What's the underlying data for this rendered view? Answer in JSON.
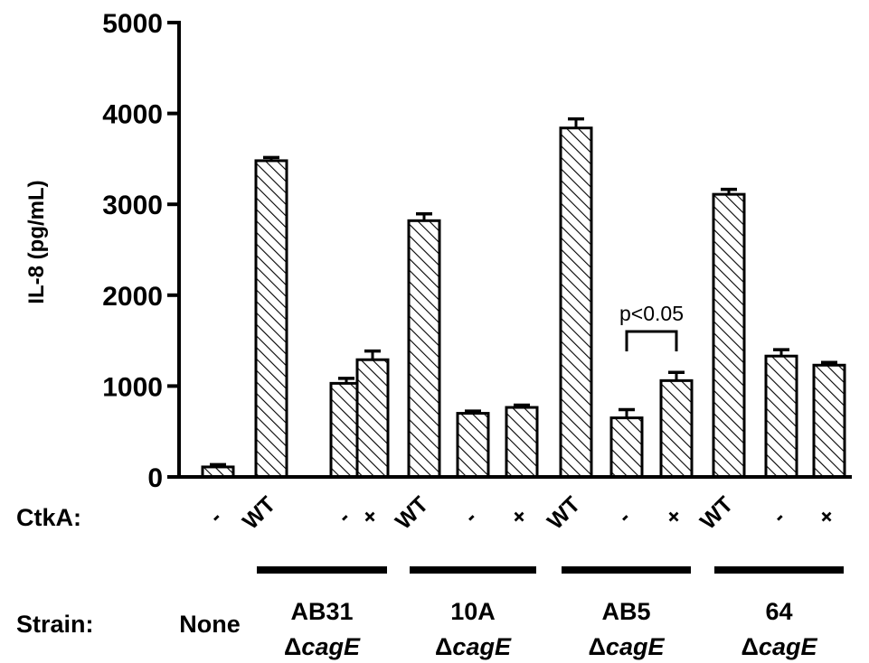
{
  "chart_data": {
    "type": "bar",
    "ylabel": "IL-8 (pg/mL)",
    "ylim": [
      0,
      5000
    ],
    "yticks": [
      0,
      1000,
      2000,
      3000,
      4000,
      5000
    ],
    "ytick_labels": [
      "0",
      "1000",
      "2000",
      "3000",
      "4000",
      "5000"
    ],
    "bar_fill": "diagonal hatch",
    "bars": [
      {
        "ctka": "-",
        "strain_index": 0,
        "value": 110,
        "error": 25
      },
      {
        "ctka": "WT",
        "strain_index": 1,
        "value": 3480,
        "error": 35
      },
      {
        "ctka": "-",
        "strain_index": 1,
        "value": 1030,
        "error": 55
      },
      {
        "ctka": "+",
        "strain_index": 1,
        "value": 1290,
        "error": 95
      },
      {
        "ctka": "WT",
        "strain_index": 2,
        "value": 2820,
        "error": 75
      },
      {
        "ctka": "-",
        "strain_index": 2,
        "value": 700,
        "error": 25
      },
      {
        "ctka": "+",
        "strain_index": 2,
        "value": 765,
        "error": 25
      },
      {
        "ctka": "WT",
        "strain_index": 3,
        "value": 3840,
        "error": 100
      },
      {
        "ctka": "-",
        "strain_index": 3,
        "value": 650,
        "error": 90
      },
      {
        "ctka": "+",
        "strain_index": 3,
        "value": 1060,
        "error": 90
      },
      {
        "ctka": "WT",
        "strain_index": 4,
        "value": 3110,
        "error": 55
      },
      {
        "ctka": "-",
        "strain_index": 4,
        "value": 1330,
        "error": 70
      },
      {
        "ctka": "+",
        "strain_index": 4,
        "value": 1230,
        "error": 30
      }
    ],
    "ctka_row_label": "CtkA:",
    "strain_row_label": "Strain:",
    "strains": [
      {
        "line1": "None",
        "prefix": "",
        "gene": ""
      },
      {
        "line1": "AB31",
        "prefix": "Δ",
        "gene": "cagE"
      },
      {
        "line1": "10A",
        "prefix": "Δ",
        "gene": "cagE"
      },
      {
        "line1": "AB5",
        "prefix": "Δ",
        "gene": "cagE"
      },
      {
        "line1": "64",
        "prefix": "Δ",
        "gene": "cagE"
      }
    ],
    "annotation": {
      "text": "p<0.05",
      "from_bar": 8,
      "to_bar": 9,
      "level": 1600
    }
  }
}
